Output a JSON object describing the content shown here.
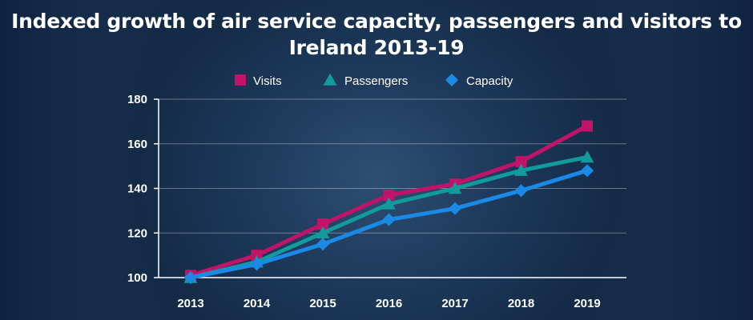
{
  "chart_data": {
    "type": "line",
    "title": "Indexed growth of air service capacity, passengers and visitors to Ireland 2013-19",
    "xlabel": "",
    "ylabel": "",
    "categories": [
      "2013",
      "2014",
      "2015",
      "2016",
      "2017",
      "2018",
      "2019"
    ],
    "ylim": [
      100,
      180
    ],
    "yticks": [
      100,
      120,
      140,
      160,
      180
    ],
    "grid": true,
    "legend": "top-center",
    "series": [
      {
        "name": "Visits",
        "marker": "square",
        "color": "#c2136b",
        "values": [
          101,
          110,
          124,
          137,
          142,
          152,
          168
        ]
      },
      {
        "name": "Passengers",
        "marker": "triangle",
        "color": "#139a9c",
        "values": [
          100,
          107,
          120,
          133,
          140,
          148,
          154
        ]
      },
      {
        "name": "Capacity",
        "marker": "diamond",
        "color": "#1a8ae6",
        "values": [
          100,
          106,
          115,
          126,
          131,
          139,
          148
        ]
      }
    ]
  }
}
